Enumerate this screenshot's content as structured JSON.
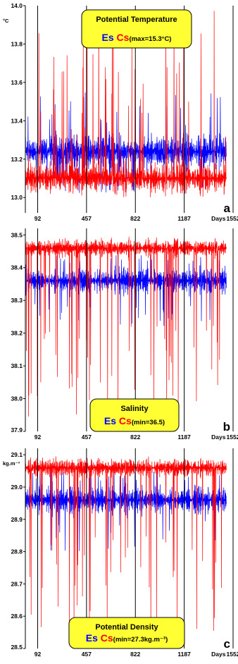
{
  "colors": {
    "es": "#0000ff",
    "cs": "#ff0000",
    "box_fill": "#ffff33",
    "box_stroke": "#000000"
  },
  "chart_data": [
    {
      "type": "line",
      "panel_label": "a",
      "title": "Potential Temperature",
      "unit": "°C",
      "x_tick_labels": [
        "92",
        "457",
        "822",
        "1187",
        "Days",
        "1552"
      ],
      "x_ticks": [
        92,
        457,
        822,
        1187,
        1552
      ],
      "xlim": [
        0,
        1552
      ],
      "y_tick_labels": [
        "14.0",
        "13.8",
        "13.6",
        "13.4",
        "13.2",
        "13.0"
      ],
      "ylim": [
        12.92,
        14.0
      ],
      "legend": {
        "es_label": "Es",
        "cs_label": "Cs",
        "note": "(max=15.3°C)"
      },
      "series": [
        {
          "name": "Es",
          "mean": 13.24,
          "band_low": 13.1,
          "band_high": 13.37,
          "spike_low": 13.02,
          "spike_high": 13.55
        },
        {
          "name": "Cs",
          "mean": 13.1,
          "band_low": 12.98,
          "band_high": 13.22,
          "spike_low": 12.93,
          "spike_high": 14.0
        }
      ]
    },
    {
      "type": "line",
      "panel_label": "b",
      "title": "Salinity",
      "unit": "",
      "x_tick_labels": [
        "92",
        "457",
        "822",
        "1187",
        "Days",
        "1552"
      ],
      "x_ticks": [
        92,
        457,
        822,
        1187,
        1552
      ],
      "xlim": [
        0,
        1552
      ],
      "y_tick_labels": [
        "38.5",
        "38.4",
        "38.3",
        "38.2",
        "38.1",
        "38.0",
        "37.9"
      ],
      "ylim": [
        37.9,
        38.52
      ],
      "legend": {
        "es_label": "Es",
        "cs_label": "Cs",
        "note": "(min=36.5)"
      },
      "series": [
        {
          "name": "Es",
          "mean": 38.36,
          "band_low": 38.3,
          "band_high": 38.42,
          "spike_low": 38.22,
          "spike_high": 38.44
        },
        {
          "name": "Cs",
          "mean": 38.46,
          "band_low": 38.42,
          "band_high": 38.5,
          "spike_low": 37.93,
          "spike_high": 38.51
        }
      ]
    },
    {
      "type": "line",
      "panel_label": "c",
      "title": "Potential Density",
      "unit": "kg.m⁻³",
      "x_tick_labels": [
        "92",
        "457",
        "822",
        "1187",
        "Days",
        "1552"
      ],
      "x_ticks": [
        92,
        457,
        822,
        1187,
        1552
      ],
      "xlim": [
        0,
        1552
      ],
      "y_tick_labels": [
        "29.1",
        "29.0",
        "28.9",
        "28.8",
        "28.7",
        "28.6",
        "28.5"
      ],
      "ylim": [
        28.5,
        29.12
      ],
      "legend": {
        "es_label": "Es",
        "cs_label": "Cs",
        "note": "(min=27.3kg.m⁻³)"
      },
      "series": [
        {
          "name": "Es",
          "mean": 28.96,
          "band_low": 28.9,
          "band_high": 29.02,
          "spike_low": 28.8,
          "spike_high": 29.05
        },
        {
          "name": "Cs",
          "mean": 29.06,
          "band_low": 29.02,
          "band_high": 29.1,
          "spike_low": 28.53,
          "spike_high": 29.11
        }
      ]
    }
  ]
}
